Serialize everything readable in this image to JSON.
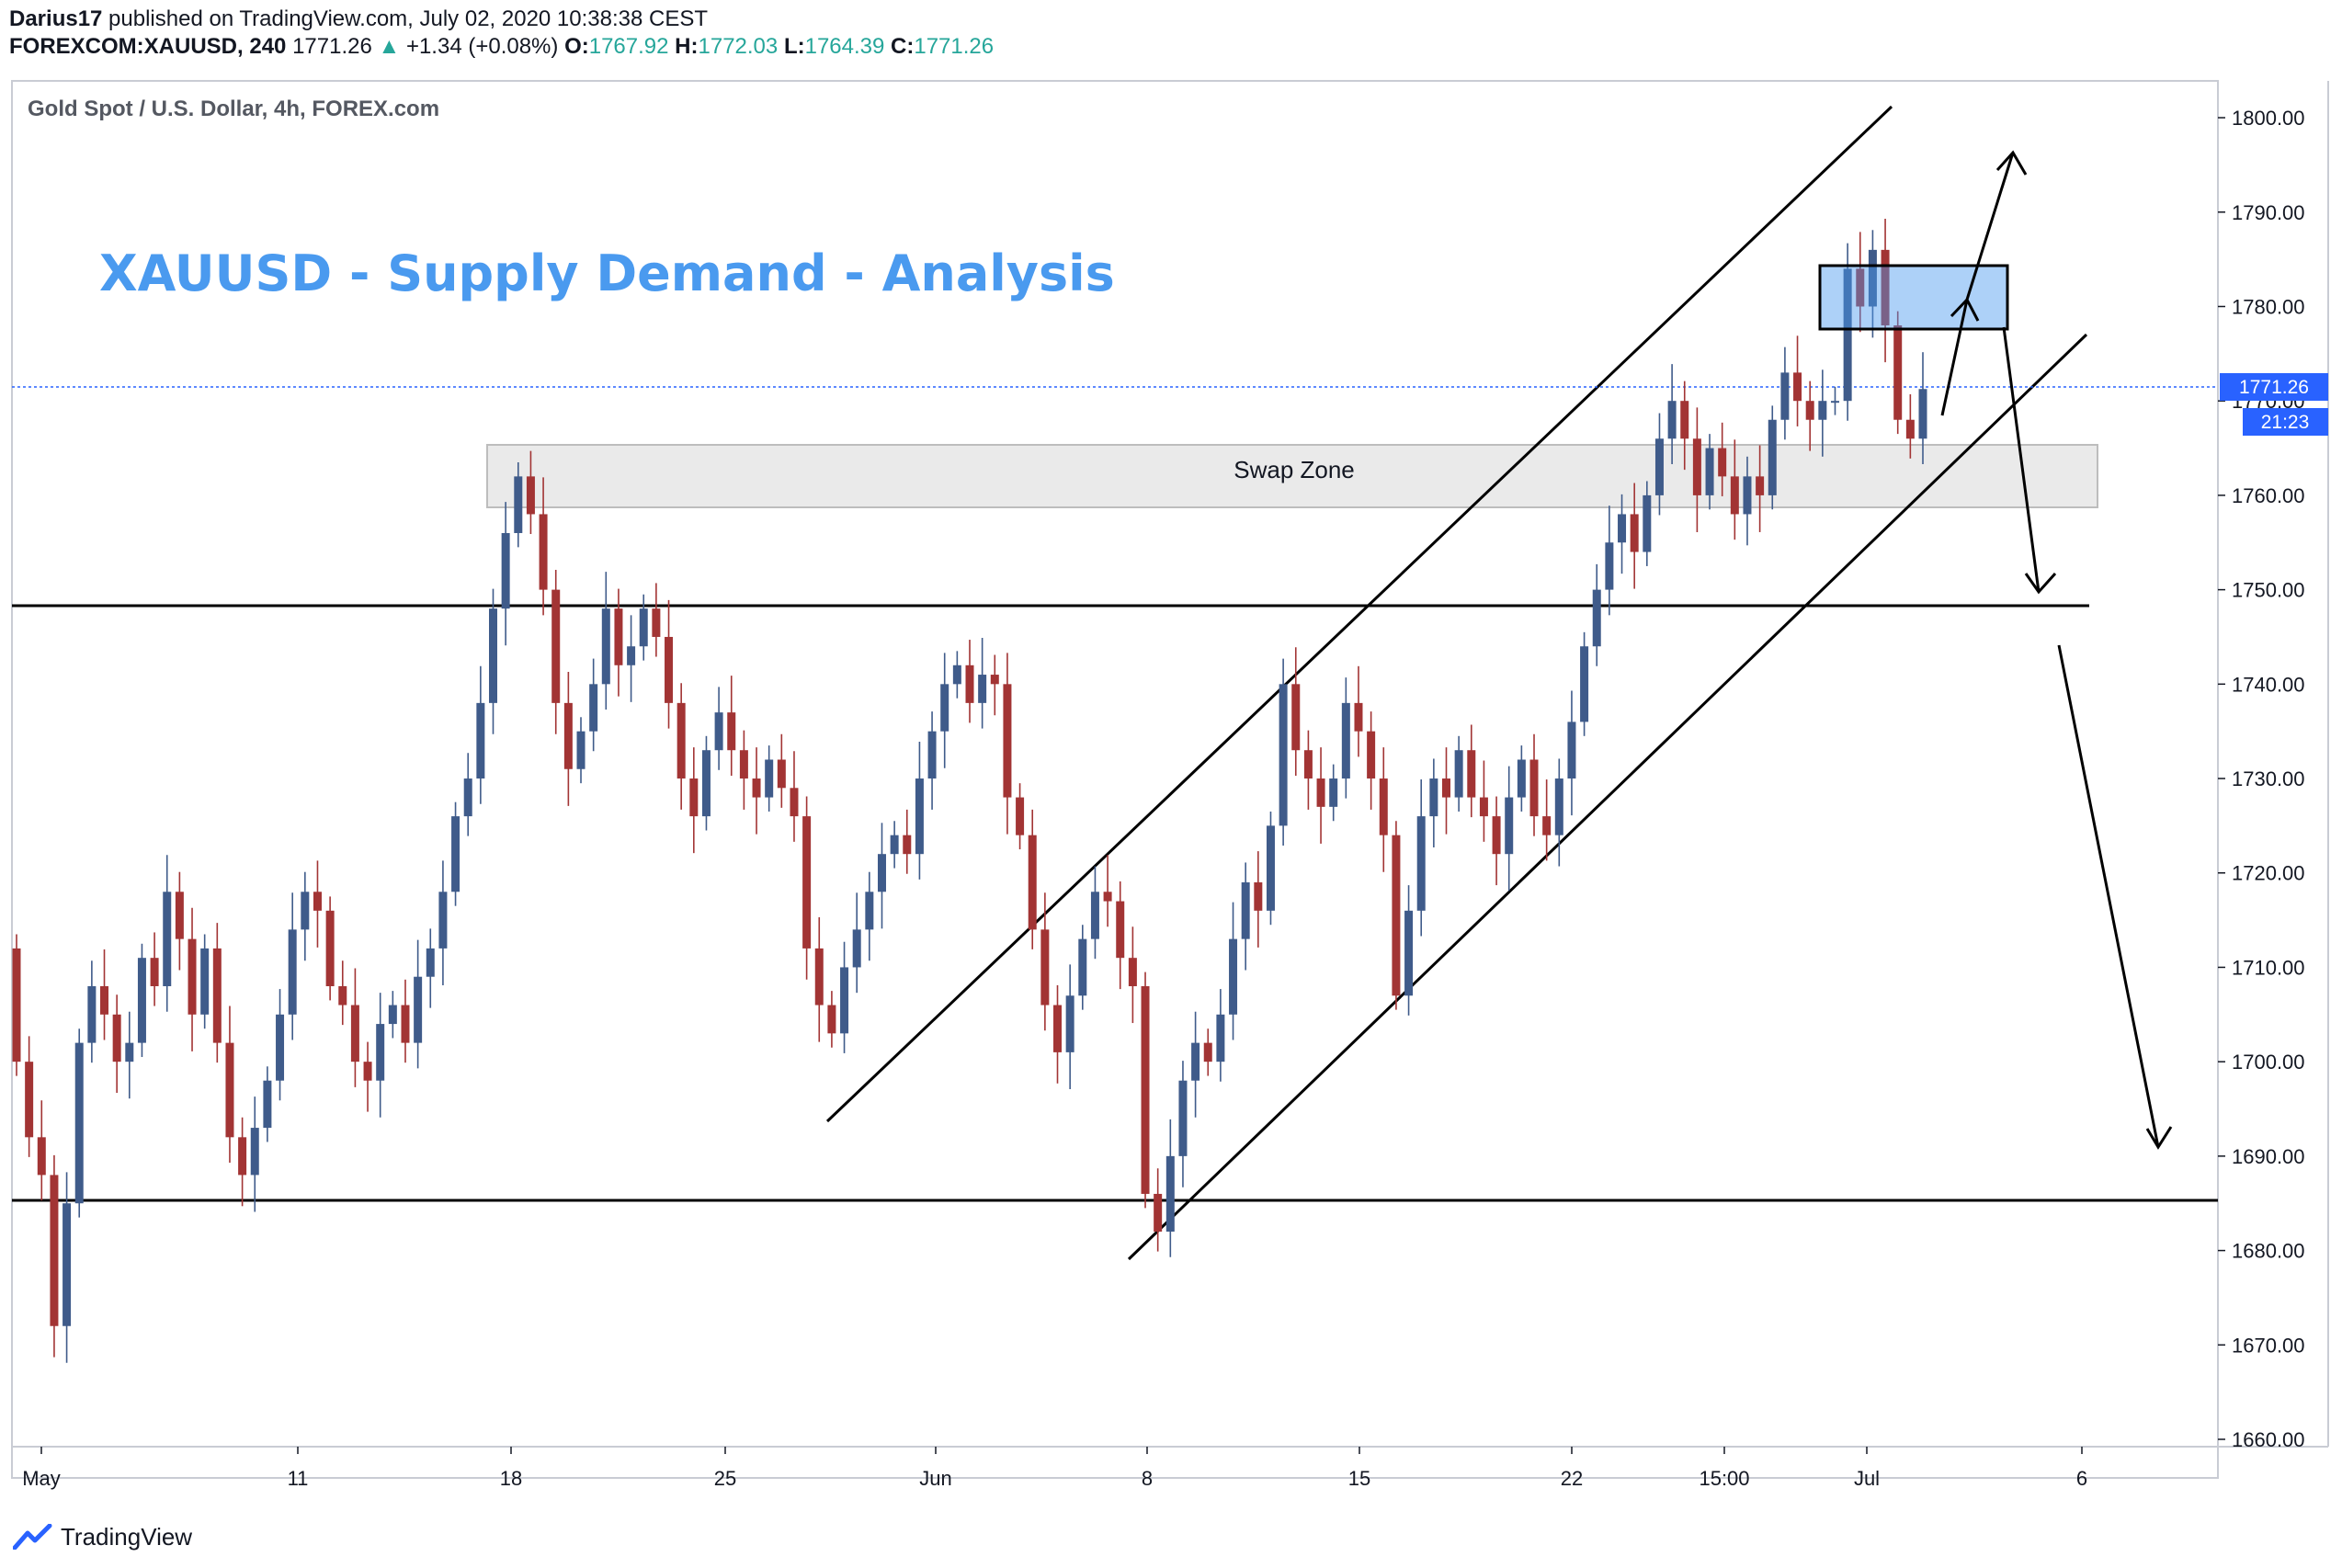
{
  "header": {
    "author": "Darius17",
    "published_text": " published on TradingView.com, July 02, 2020 10:38:38 CEST",
    "symbol_line": "FOREXCOM:XAUUSD, 240",
    "last_price": "1771.26",
    "change_arrow": "▲",
    "change": "+1.34 (+0.08%)",
    "open_label": "O:",
    "open": "1767.92",
    "high_label": "H:",
    "high": "1772.03",
    "low_label": "L:",
    "low": "1764.39",
    "close_label": "C:",
    "close": "1771.26"
  },
  "chart_title": "Gold Spot / U.S. Dollar, 4h, FOREX.com",
  "analysis_title": "XAUUSD - Supply Demand - Analysis",
  "footer": {
    "brand": "TradingView",
    "logo_icon": "tradingview-logo-icon"
  },
  "colors": {
    "up": "#3f5b8a",
    "down": "#a23434",
    "accent": "#4a9aef",
    "change": "#26a69a",
    "price_tag": "#2962ff"
  },
  "chart_data": {
    "type": "candlestick",
    "title": "Gold Spot / U.S. Dollar, 4h, FOREX.com",
    "ylim": [
      1658,
      1806
    ],
    "y_ticks": [
      "1800.00",
      "1790.00",
      "1780.00",
      "1770.00",
      "1760.00",
      "1750.00",
      "1740.00",
      "1730.00",
      "1720.00",
      "1710.00",
      "1700.00",
      "1690.00",
      "1680.00",
      "1670.00",
      "1660.00"
    ],
    "x_ticks": [
      "May",
      "11",
      "18",
      "25",
      "Jun",
      "8",
      "15",
      "22",
      "15:00",
      "Jul",
      "6"
    ],
    "x_range": [
      "2020-04-30T00:00",
      "2020-07-07T00:00"
    ],
    "last_price_label": "1771.26",
    "countdown_label": "21:23",
    "closes": [
      [
        1,
        1700
      ],
      [
        2,
        1692
      ],
      [
        3,
        1688
      ],
      [
        4,
        1672
      ],
      [
        5,
        1685
      ],
      [
        6,
        1702
      ],
      [
        7,
        1708
      ],
      [
        8,
        1705
      ],
      [
        9,
        1700
      ],
      [
        10,
        1702
      ],
      [
        11,
        1711
      ],
      [
        12,
        1708
      ],
      [
        13,
        1718
      ],
      [
        14,
        1713
      ],
      [
        15,
        1705
      ],
      [
        16,
        1712
      ],
      [
        17,
        1702
      ],
      [
        18,
        1692
      ],
      [
        19,
        1688
      ],
      [
        20,
        1693
      ],
      [
        21,
        1698
      ],
      [
        22,
        1705
      ],
      [
        23,
        1714
      ],
      [
        24,
        1718
      ],
      [
        25,
        1716
      ],
      [
        26,
        1708
      ],
      [
        27,
        1706
      ],
      [
        28,
        1700
      ],
      [
        29,
        1698
      ],
      [
        30,
        1704
      ],
      [
        31,
        1706
      ],
      [
        32,
        1702
      ],
      [
        33,
        1709
      ],
      [
        34,
        1712
      ],
      [
        35,
        1718
      ],
      [
        36,
        1726
      ],
      [
        37,
        1730
      ],
      [
        38,
        1738
      ],
      [
        39,
        1748
      ],
      [
        40,
        1756
      ],
      [
        41,
        1762
      ],
      [
        42,
        1758
      ],
      [
        43,
        1750
      ],
      [
        44,
        1738
      ],
      [
        45,
        1731
      ],
      [
        46,
        1735
      ],
      [
        47,
        1740
      ],
      [
        48,
        1748
      ],
      [
        49,
        1742
      ],
      [
        50,
        1744
      ],
      [
        51,
        1748
      ],
      [
        52,
        1745
      ],
      [
        53,
        1738
      ],
      [
        54,
        1730
      ],
      [
        55,
        1726
      ],
      [
        56,
        1733
      ],
      [
        57,
        1737
      ],
      [
        58,
        1733
      ],
      [
        59,
        1730
      ],
      [
        60,
        1728
      ],
      [
        61,
        1732
      ],
      [
        62,
        1729
      ],
      [
        63,
        1726
      ],
      [
        64,
        1712
      ],
      [
        65,
        1706
      ],
      [
        66,
        1703
      ],
      [
        67,
        1710
      ],
      [
        68,
        1714
      ],
      [
        69,
        1718
      ],
      [
        70,
        1722
      ],
      [
        71,
        1724
      ],
      [
        72,
        1722
      ],
      [
        73,
        1730
      ],
      [
        74,
        1735
      ],
      [
        75,
        1740
      ],
      [
        76,
        1742
      ],
      [
        77,
        1738
      ],
      [
        78,
        1741
      ],
      [
        79,
        1740
      ],
      [
        80,
        1728
      ],
      [
        81,
        1724
      ],
      [
        82,
        1714
      ],
      [
        83,
        1706
      ],
      [
        84,
        1701
      ],
      [
        85,
        1707
      ],
      [
        86,
        1713
      ],
      [
        87,
        1718
      ],
      [
        88,
        1717
      ],
      [
        89,
        1711
      ],
      [
        90,
        1708
      ],
      [
        91,
        1686
      ],
      [
        92,
        1682
      ],
      [
        93,
        1690
      ],
      [
        94,
        1698
      ],
      [
        95,
        1702
      ],
      [
        96,
        1700
      ],
      [
        97,
        1705
      ],
      [
        98,
        1713
      ],
      [
        99,
        1719
      ],
      [
        100,
        1716
      ],
      [
        101,
        1725
      ],
      [
        102,
        1740
      ],
      [
        103,
        1733
      ],
      [
        104,
        1730
      ],
      [
        105,
        1727
      ],
      [
        106,
        1730
      ],
      [
        107,
        1738
      ],
      [
        108,
        1735
      ],
      [
        109,
        1730
      ],
      [
        110,
        1724
      ],
      [
        111,
        1707
      ],
      [
        112,
        1716
      ],
      [
        113,
        1726
      ],
      [
        114,
        1730
      ],
      [
        115,
        1728
      ],
      [
        116,
        1733
      ],
      [
        117,
        1728
      ],
      [
        118,
        1726
      ],
      [
        119,
        1722
      ],
      [
        120,
        1728
      ],
      [
        121,
        1732
      ],
      [
        122,
        1726
      ],
      [
        123,
        1724
      ],
      [
        124,
        1730
      ],
      [
        125,
        1736
      ],
      [
        126,
        1744
      ],
      [
        127,
        1750
      ],
      [
        128,
        1755
      ],
      [
        129,
        1758
      ],
      [
        130,
        1754
      ],
      [
        131,
        1760
      ],
      [
        132,
        1766
      ],
      [
        133,
        1770
      ],
      [
        134,
        1766
      ],
      [
        135,
        1760
      ],
      [
        136,
        1765
      ],
      [
        137,
        1762
      ],
      [
        138,
        1758
      ],
      [
        139,
        1762
      ],
      [
        140,
        1760
      ],
      [
        141,
        1768
      ],
      [
        142,
        1773
      ],
      [
        143,
        1770
      ],
      [
        144,
        1768
      ],
      [
        145,
        1770
      ],
      [
        146,
        1770
      ],
      [
        147,
        1784
      ],
      [
        148,
        1780
      ],
      [
        149,
        1786
      ],
      [
        150,
        1778
      ],
      [
        151,
        1768
      ],
      [
        152,
        1766
      ],
      [
        153,
        1771.26
      ]
    ],
    "annotations": [
      "Swap Zone"
    ]
  }
}
